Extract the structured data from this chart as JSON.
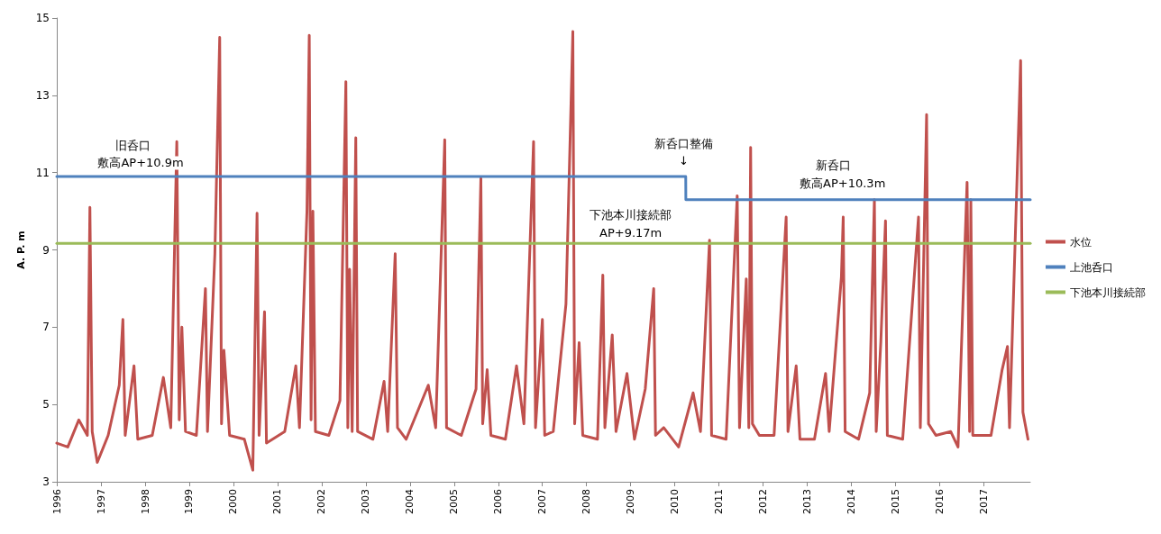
{
  "chart_data": {
    "type": "line",
    "ylabel": "A. P. m",
    "xlim": [
      "1996-01-01",
      "2018-01-20"
    ],
    "xticks": [
      "1996",
      "1997",
      "1998",
      "1999",
      "2000",
      "2001",
      "2002",
      "2003",
      "2004",
      "2005",
      "2006",
      "2007",
      "2008",
      "2009",
      "2010",
      "2011",
      "2012",
      "2013",
      "2014",
      "2015",
      "2016",
      "2017"
    ],
    "ylim": [
      3,
      15
    ],
    "yticks": [
      3,
      5,
      7,
      9,
      11,
      13,
      15
    ],
    "legend": "right",
    "marker": "none",
    "line_style": "solid",
    "series": [
      {
        "name": "水位",
        "color": "#c0504d",
        "x": [
          "1996-01-01",
          "1996-04-01",
          "1996-07-01",
          "1996-09-10",
          "1996-10-01",
          "1996-10-20",
          "1996-12-01",
          "1997-03-01",
          "1997-06-01",
          "1997-07-01",
          "1997-07-20",
          "1997-10-01",
          "1997-11-01",
          "1998-03-01",
          "1998-06-01",
          "1998-08-01",
          "1998-09-01",
          "1998-09-20",
          "1998-10-10",
          "1998-11-01",
          "1998-12-01",
          "1999-03-01",
          "1999-05-15",
          "1999-06-01",
          "1999-08-01",
          "1999-09-10",
          "1999-09-25",
          "1999-10-15",
          "1999-12-01",
          "2000-04-01",
          "2000-06-10",
          "2000-07-15",
          "2000-08-01",
          "2000-09-15",
          "2000-10-01",
          "2001-03-01",
          "2001-06-01",
          "2001-07-01",
          "2001-09-01",
          "2001-09-20",
          "2001-10-05",
          "2001-10-20",
          "2001-11-10",
          "2002-03-01",
          "2002-06-01",
          "2002-07-20",
          "2002-08-05",
          "2002-08-20",
          "2002-09-10",
          "2002-10-10",
          "2002-10-25",
          "2003-03-01",
          "2003-06-01",
          "2003-07-01",
          "2003-09-01",
          "2003-09-20",
          "2003-12-01",
          "2004-06-01",
          "2004-08-01",
          "2004-10-15",
          "2004-10-30",
          "2005-03-01",
          "2005-07-01",
          "2005-08-10",
          "2005-08-25",
          "2005-10-01",
          "2005-11-01",
          "2006-03-01",
          "2006-06-01",
          "2006-08-01",
          "2006-10-20",
          "2006-11-05",
          "2007-01-01",
          "2007-01-20",
          "2007-04-01",
          "2007-07-15",
          "2007-09-10",
          "2007-09-25",
          "2007-11-01",
          "2007-12-01",
          "2008-04-01",
          "2008-05-15",
          "2008-06-01",
          "2008-08-01",
          "2008-09-01",
          "2008-12-01",
          "2009-02-01",
          "2009-05-01",
          "2009-07-10",
          "2009-07-25",
          "2009-10-01",
          "2010-02-01",
          "2010-06-01",
          "2010-08-01",
          "2010-10-15",
          "2010-11-01",
          "2011-03-01",
          "2011-06-01",
          "2011-06-20",
          "2011-08-15",
          "2011-09-05",
          "2011-09-20",
          "2011-10-05",
          "2011-12-01",
          "2012-04-01",
          "2012-07-10",
          "2012-07-25",
          "2012-10-01",
          "2012-11-01",
          "2013-03-01",
          "2013-06-01",
          "2013-07-01",
          "2013-10-10",
          "2013-10-25",
          "2013-11-10",
          "2014-03-01",
          "2014-06-01",
          "2014-07-10",
          "2014-07-25",
          "2014-09-01",
          "2014-10-10",
          "2014-10-25",
          "2015-03-01",
          "2015-07-10",
          "2015-07-25",
          "2015-09-15",
          "2015-10-01",
          "2015-12-01",
          "2016-04-01",
          "2016-06-01",
          "2016-08-15",
          "2016-09-05",
          "2016-09-15",
          "2016-10-01",
          "2017-03-01",
          "2017-06-01",
          "2017-07-15",
          "2017-08-01",
          "2017-11-01",
          "2017-11-20",
          "2018-01-01"
        ],
        "values": [
          4.0,
          3.9,
          4.6,
          4.2,
          10.1,
          4.3,
          3.5,
          4.2,
          5.5,
          7.2,
          4.2,
          6.0,
          4.1,
          4.2,
          5.7,
          4.4,
          9.0,
          11.8,
          4.6,
          7.0,
          4.3,
          4.2,
          8.0,
          4.3,
          8.9,
          14.5,
          4.5,
          6.4,
          4.2,
          4.1,
          3.3,
          9.95,
          4.2,
          7.4,
          4.0,
          4.3,
          6.0,
          4.4,
          10.0,
          14.55,
          4.6,
          10.0,
          4.3,
          4.2,
          5.1,
          13.35,
          4.4,
          8.5,
          4.3,
          11.9,
          4.3,
          4.1,
          5.6,
          4.3,
          8.9,
          4.4,
          4.1,
          5.5,
          4.4,
          11.85,
          4.4,
          4.2,
          5.4,
          10.85,
          4.5,
          5.9,
          4.2,
          4.1,
          6.0,
          4.5,
          11.8,
          4.4,
          7.2,
          4.2,
          4.3,
          7.6,
          14.65,
          4.5,
          6.6,
          4.2,
          4.1,
          8.35,
          4.4,
          6.8,
          4.3,
          5.8,
          4.1,
          5.4,
          8.0,
          4.2,
          4.4,
          3.9,
          5.3,
          4.3,
          9.25,
          4.2,
          4.1,
          10.4,
          4.4,
          8.25,
          4.4,
          11.65,
          4.5,
          4.2,
          4.2,
          9.85,
          4.3,
          6.0,
          4.1,
          4.1,
          5.8,
          4.3,
          8.3,
          9.85,
          4.3,
          4.1,
          5.3,
          10.3,
          4.3,
          6.6,
          9.75,
          4.2,
          4.1,
          9.85,
          4.4,
          12.5,
          4.5,
          4.2,
          4.3,
          3.9,
          10.75,
          4.3,
          10.3,
          4.2,
          4.2,
          5.9,
          6.5,
          4.4,
          13.9,
          4.8,
          4.1
        ]
      },
      {
        "name": "上池呑口",
        "color": "#4f81bd",
        "x": [
          "1996-01-01",
          "2010-04-01",
          "2010-04-02",
          "2018-01-20"
        ],
        "values": [
          10.9,
          10.9,
          10.3,
          10.3
        ]
      },
      {
        "name": "下池本川接続部",
        "color": "#9bbb59",
        "x": [
          "1996-01-01",
          "2018-01-20"
        ],
        "values": [
          9.17,
          9.17
        ]
      }
    ],
    "annotations": [
      "旧呑口",
      "敷高AP+10.9m",
      "新呑口整備",
      "↓",
      "新呑口",
      "敷高AP+10.3m",
      "下池本川接続部",
      "AP+9.17m"
    ]
  }
}
